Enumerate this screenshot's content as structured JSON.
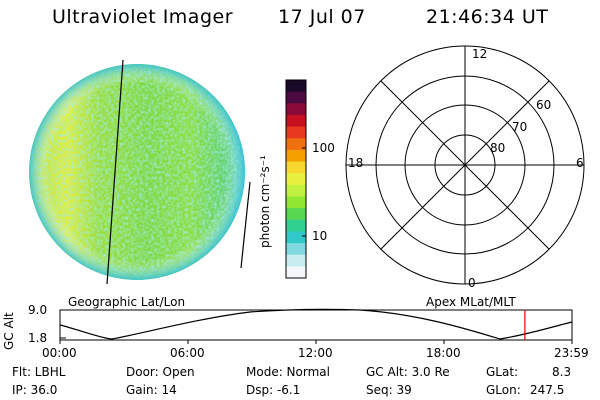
{
  "header": {
    "instrument": "Ultraviolet Imager",
    "date": "17 Jul 07",
    "time": "21:46:34 UT"
  },
  "colorbar": {
    "label": "photon cm⁻²s⁻¹",
    "ticks": [
      "100",
      "10"
    ],
    "colors": [
      "#1a0a2a",
      "#4a0a40",
      "#8a0a3a",
      "#c81020",
      "#e83820",
      "#f07010",
      "#f5a000",
      "#f8d830",
      "#e8f040",
      "#c0f040",
      "#90e830",
      "#58d850",
      "#30d090",
      "#30c8c8",
      "#80d8e0",
      "#c8ecf0",
      "#f4f8fa"
    ]
  },
  "polar": {
    "clock_labels": [
      "12",
      "18",
      "6",
      "0"
    ],
    "lat_labels": [
      "60",
      "70",
      "80"
    ]
  },
  "timeline": {
    "ylabel": "GC Alt",
    "ymax": "9.0",
    "ymin": "1.8",
    "left_label": "Geographic Lat/Lon",
    "right_label": "Apex MLat/MLT",
    "xticks": [
      "00:00",
      "06:00",
      "12:00",
      "18:00",
      "23:59"
    ],
    "marker_time": "21:46:34",
    "marker_color": "#e00000"
  },
  "footer": {
    "flt": "Flt: LBHL",
    "ip": "IP: 36.0",
    "door": "Door: Open",
    "gain": "Gain: 14",
    "mode": "Mode: Normal",
    "dsp": "Dsp:   -6.1",
    "gcalt": "GC Alt: 3.0 Re",
    "seq": "Seq: 39",
    "glat_label": "GLat:",
    "glat_value": "8.3",
    "glon_label": "GLon:",
    "glon_value": "247.5"
  }
}
